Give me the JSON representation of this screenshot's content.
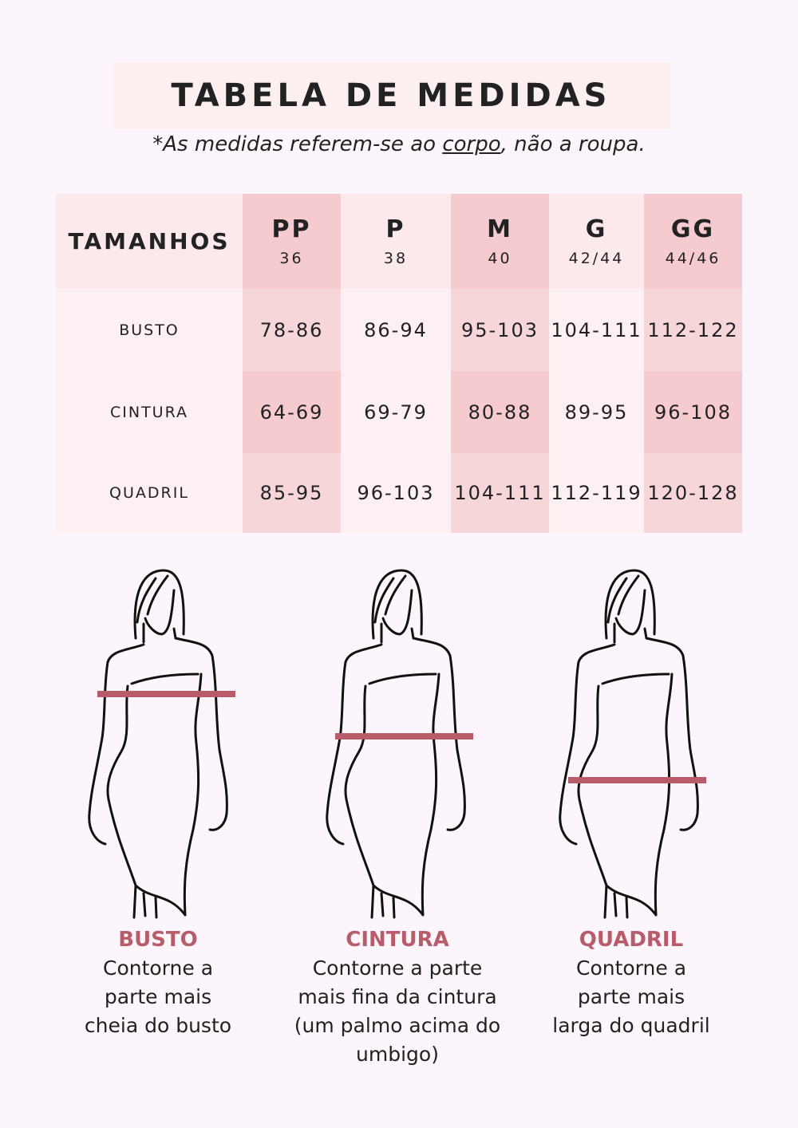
{
  "title": "TABELA DE MEDIDAS",
  "subtitle": {
    "prefix": "*As medidas referem-se ao ",
    "underlined": "corpo",
    "suffix": ", não a roupa."
  },
  "table": {
    "header_label": "TAMANHOS",
    "sizes": [
      {
        "name": "PP",
        "number": "36"
      },
      {
        "name": "P",
        "number": "38"
      },
      {
        "name": "M",
        "number": "40"
      },
      {
        "name": "G",
        "number": "42/44"
      },
      {
        "name": "GG",
        "number": "44/46"
      }
    ],
    "rows": [
      {
        "label": "BUSTO",
        "values": [
          "78-86",
          "86-94",
          "95-103",
          "104-111",
          "112-122"
        ]
      },
      {
        "label": "CINTURA",
        "values": [
          "64-69",
          "69-79",
          "80-88",
          "89-95",
          "96-108"
        ]
      },
      {
        "label": "QUADRIL",
        "values": [
          "85-95",
          "96-103",
          "104-111",
          "112-119",
          "120-128"
        ]
      }
    ]
  },
  "colors": {
    "accent": "#b85c6a",
    "band": "#b85c6a",
    "dark_cell": "#f5cbcf",
    "light_cell": "#fbe9ec",
    "background": "#fdf5fc"
  },
  "guides": [
    {
      "title": "BUSTO",
      "text": "Contorne a\nparte mais\ncheia do busto"
    },
    {
      "title": "CINTURA",
      "text": "Contorne a parte\nmais fina da cintura\n(um palmo acima do umbigo)"
    },
    {
      "title": "QUADRIL",
      "text": "Contorne a\nparte mais\nlarga do quadril"
    }
  ]
}
